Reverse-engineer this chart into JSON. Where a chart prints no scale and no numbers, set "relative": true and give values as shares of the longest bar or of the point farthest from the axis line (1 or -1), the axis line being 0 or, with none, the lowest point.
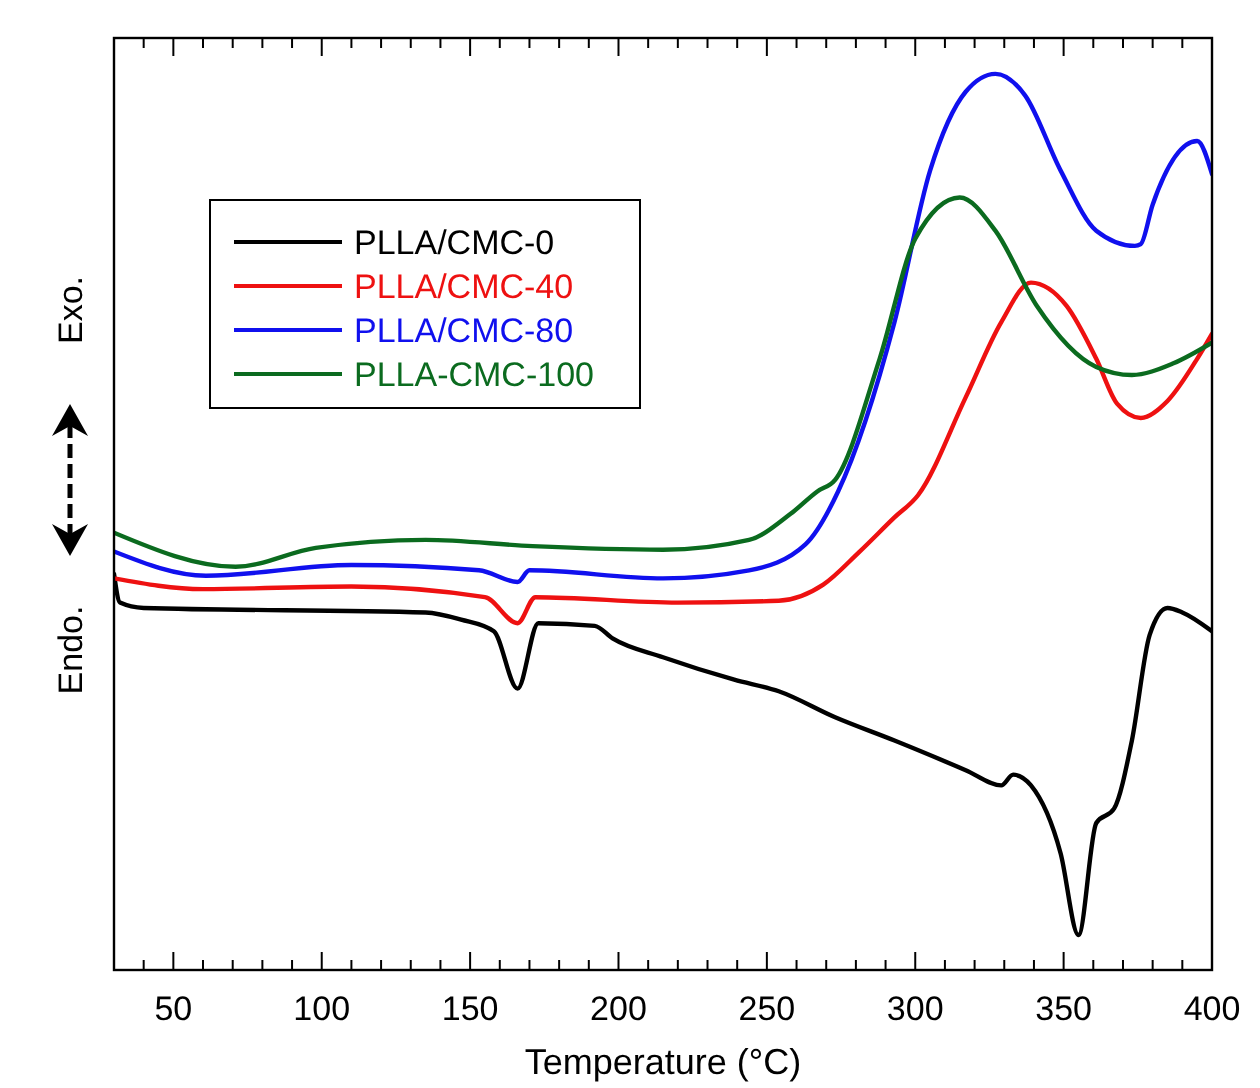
{
  "chart_data": {
    "type": "line",
    "relative": true,
    "xlabel": "Temperature (°C)",
    "annotations": [
      "Endo.",
      "Exo."
    ],
    "xlim": [
      30,
      400
    ],
    "xticks": [
      {
        "value": 40,
        "label": null
      },
      50,
      {
        "value": 60,
        "label": null
      },
      {
        "value": 70,
        "label": null
      },
      {
        "value": 80,
        "label": null
      },
      {
        "value": 90,
        "label": null
      },
      100,
      {
        "value": 110,
        "label": null
      },
      {
        "value": 120,
        "label": null
      },
      {
        "value": 130,
        "label": null
      },
      {
        "value": 140,
        "label": null
      },
      150,
      {
        "value": 160,
        "label": null
      },
      {
        "value": 170,
        "label": null
      },
      {
        "value": 180,
        "label": null
      },
      {
        "value": 190,
        "label": null
      },
      200,
      {
        "value": 210,
        "label": null
      },
      {
        "value": 220,
        "label": null
      },
      {
        "value": 230,
        "label": null
      },
      {
        "value": 240,
        "label": null
      },
      250,
      {
        "value": 260,
        "label": null
      },
      {
        "value": 270,
        "label": null
      },
      {
        "value": 280,
        "label": null
      },
      {
        "value": 290,
        "label": null
      },
      300,
      {
        "value": 310,
        "label": null
      },
      {
        "value": 320,
        "label": null
      },
      {
        "value": 330,
        "label": null
      },
      {
        "value": 340,
        "label": null
      },
      350,
      {
        "value": 360,
        "label": null
      },
      {
        "value": 370,
        "label": null
      },
      {
        "value": 380,
        "label": null
      },
      {
        "value": 390,
        "label": null
      },
      400
    ],
    "legend": "top left",
    "grid": false,
    "line_style": "solid",
    "series": [
      {
        "name": "PLLA/CMC-0",
        "color": "#000000",
        "x": [
          30,
          32,
          40,
          135,
          147,
          158,
          166,
          173,
          192,
          198,
          215,
          239,
          254,
          273,
          293,
          317,
          329,
          333,
          339,
          349,
          355,
          361,
          367,
          373,
          379,
          385,
          390,
          400
        ],
        "values": [
          0.442,
          0.41,
          0.404,
          0.399,
          0.391,
          0.378,
          0.314,
          0.387,
          0.384,
          0.37,
          0.349,
          0.324,
          0.311,
          0.282,
          0.256,
          0.223,
          0.206,
          0.218,
          0.206,
          0.13,
          0.039,
          0.164,
          0.18,
          0.256,
          0.374,
          0.404,
          0.399,
          0.378
        ]
      },
      {
        "name": "PLLA/CMC-40",
        "color": "#ee1111",
        "x": [
          30,
          60,
          110,
          155,
          166,
          172,
          220,
          254,
          269,
          281,
          293,
          301,
          317,
          329,
          339,
          351,
          361,
          368,
          376,
          385,
          395,
          400
        ],
        "values": [
          0.437,
          0.425,
          0.428,
          0.416,
          0.387,
          0.416,
          0.41,
          0.412,
          0.43,
          0.466,
          0.505,
          0.53,
          0.639,
          0.723,
          0.767,
          0.741,
          0.682,
          0.632,
          0.616,
          0.635,
          0.682,
          0.71
        ]
      },
      {
        "name": "PLLA/CMC-80",
        "color": "#1010ee",
        "x": [
          30,
          61,
          110,
          153,
          166,
          170,
          215,
          244,
          263,
          274,
          293,
          305,
          317,
          327,
          337,
          349,
          361,
          374,
          376,
          380,
          395,
          400
        ],
        "values": [
          0.467,
          0.44,
          0.452,
          0.446,
          0.433,
          0.446,
          0.437,
          0.446,
          0.475,
          0.534,
          0.723,
          0.892,
          0.98,
          1.0,
          0.976,
          0.892,
          0.825,
          0.808,
          0.81,
          0.854,
          0.925,
          0.888
        ]
      },
      {
        "name": "PLLA-CMC-100",
        "color": "#0b6b1f",
        "x": [
          30,
          71,
          98,
          135,
          171,
          215,
          244,
          258,
          267,
          273,
          288,
          300,
          315,
          327,
          341,
          361,
          373,
          387,
          400
        ],
        "values": [
          0.488,
          0.45,
          0.471,
          0.48,
          0.473,
          0.469,
          0.48,
          0.509,
          0.534,
          0.547,
          0.682,
          0.816,
          0.862,
          0.825,
          0.741,
          0.673,
          0.664,
          0.677,
          0.7
        ]
      }
    ]
  }
}
